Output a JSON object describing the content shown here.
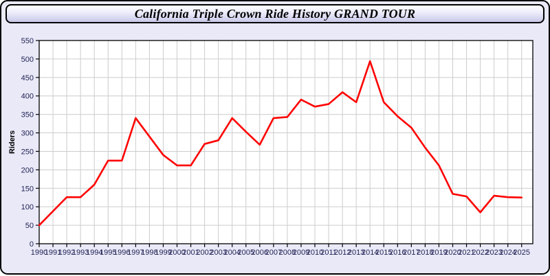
{
  "window": {
    "title": "California Triple Crown Ride History GRAND TOUR"
  },
  "colors": {
    "window_bg": "#e9e9f8",
    "window_border": "#000000",
    "titlebar_top": "#fdfdff",
    "titlebar_bottom": "#c9c9e9",
    "plot_bg": "#ffffff",
    "plot_border": "#000000",
    "grid": "#cccccc",
    "line": "#ff0000",
    "tick_text": "#1f1f52",
    "axis_title_text": "#000000"
  },
  "chart_data": {
    "type": "line",
    "title": "California Triple Crown Ride History GRAND TOUR",
    "xlabel": "",
    "ylabel": "Riders",
    "ylim": [
      0,
      550
    ],
    "ytick_step": 50,
    "grid": true,
    "legend": false,
    "categories": [
      1990,
      1991,
      1992,
      1993,
      1994,
      1995,
      1996,
      1997,
      1998,
      1999,
      2000,
      2001,
      2002,
      2003,
      2004,
      2005,
      2006,
      2007,
      2008,
      2009,
      2010,
      2011,
      2012,
      2013,
      2014,
      2015,
      2016,
      2017,
      2018,
      2019,
      2020,
      2021,
      2022,
      2023,
      2024,
      2025
    ],
    "series": [
      {
        "name": "Riders",
        "color": "#ff0000",
        "values": [
          50,
          88,
          126,
          126,
          160,
          225,
          225,
          340,
          290,
          240,
          212,
          212,
          270,
          280,
          340,
          303,
          268,
          340,
          343,
          390,
          371,
          378,
          410,
          383,
          494,
          383,
          345,
          314,
          260,
          212,
          135,
          128,
          85,
          130,
          126,
          125
        ]
      }
    ]
  }
}
